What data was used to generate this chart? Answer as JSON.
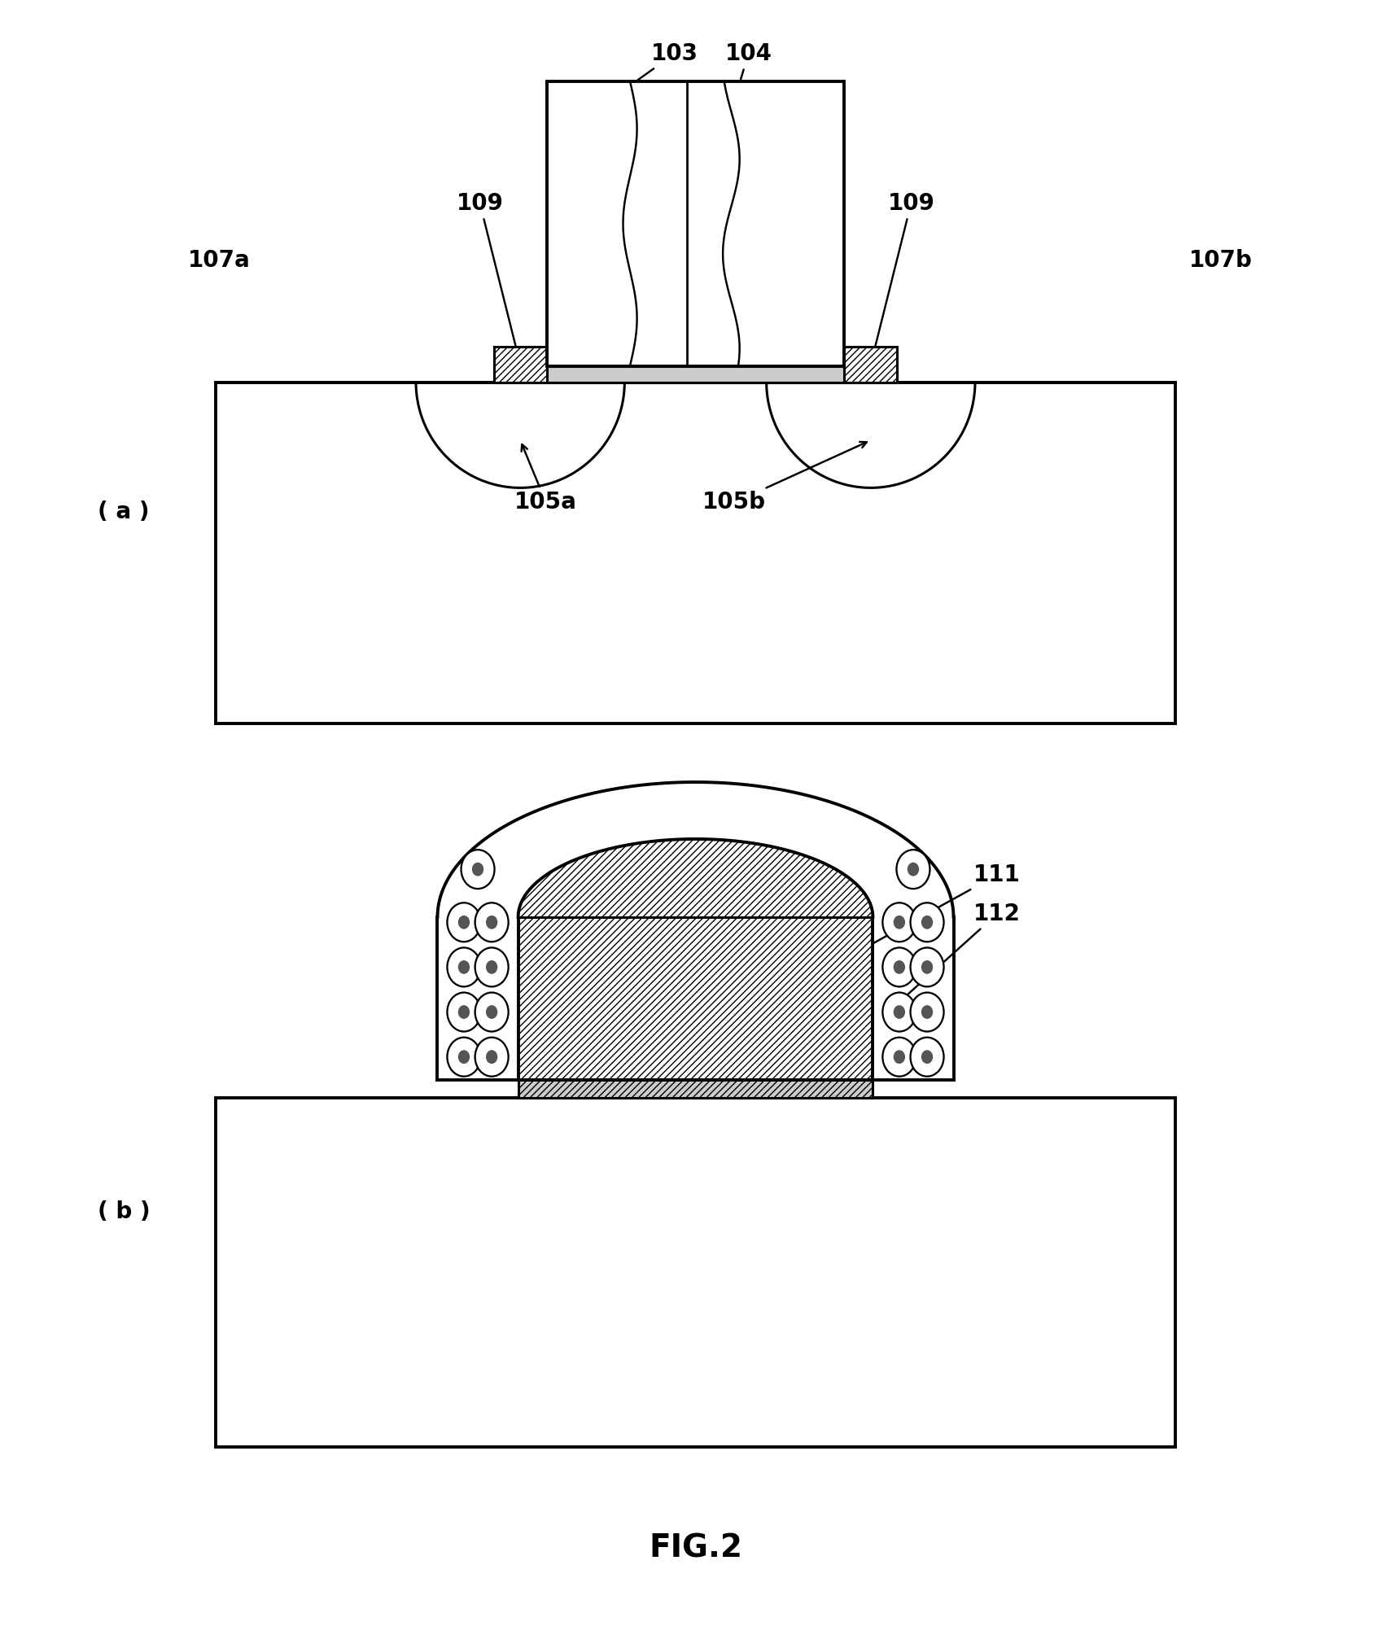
{
  "bg_color": "#ffffff",
  "line_color": "#000000",
  "fig_title": "FIG.2",
  "label_a": "( a )",
  "label_b": "( b )"
}
